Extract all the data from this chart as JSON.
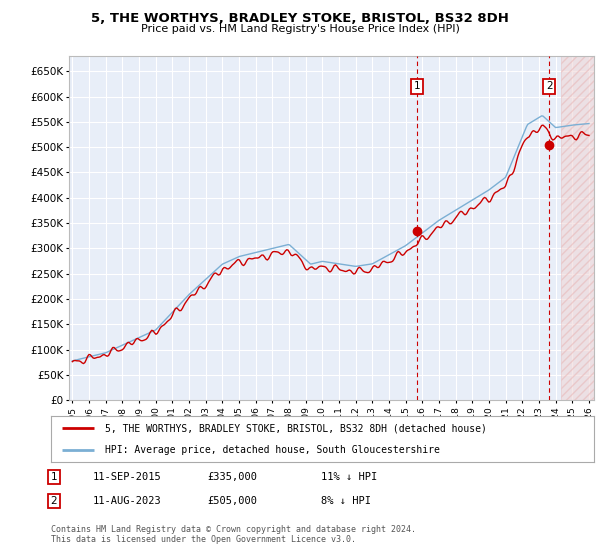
{
  "title": "5, THE WORTHYS, BRADLEY STOKE, BRISTOL, BS32 8DH",
  "subtitle": "Price paid vs. HM Land Registry's House Price Index (HPI)",
  "legend_line1": "5, THE WORTHYS, BRADLEY STOKE, BRISTOL, BS32 8DH (detached house)",
  "legend_line2": "HPI: Average price, detached house, South Gloucestershire",
  "footnote": "Contains HM Land Registry data © Crown copyright and database right 2024.\nThis data is licensed under the Open Government Licence v3.0.",
  "annotation1_date": "11-SEP-2015",
  "annotation1_price": "£335,000",
  "annotation1_hpi": "11% ↓ HPI",
  "annotation2_date": "11-AUG-2023",
  "annotation2_price": "£505,000",
  "annotation2_hpi": "8% ↓ HPI",
  "hpi_color": "#7bafd4",
  "price_color": "#cc0000",
  "background_color": "#ffffff",
  "plot_bg_color": "#e8eef8",
  "grid_color": "#ffffff",
  "ylim": [
    0,
    680000
  ],
  "yticks": [
    0,
    50000,
    100000,
    150000,
    200000,
    250000,
    300000,
    350000,
    400000,
    450000,
    500000,
    550000,
    600000,
    650000
  ],
  "vline_color": "#cc0000",
  "sale1_x": 2015.7,
  "sale1_y": 335000,
  "sale2_x": 2023.62,
  "sale2_y": 505000,
  "xmin": 1994.8,
  "xmax": 2026.3,
  "hatch_start": 2024.3
}
